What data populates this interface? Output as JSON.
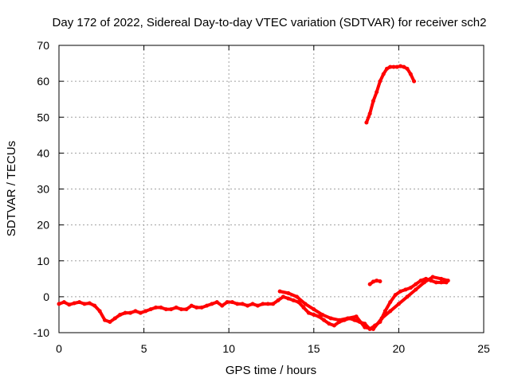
{
  "chart_data": {
    "type": "scatter",
    "title": "Day 172 of 2022, Sidereal Day-to-day VTEC variation (SDTVAR) for receiver sch2",
    "xlabel": "GPS time / hours",
    "ylabel": "SDTVAR / TECUs",
    "xlim": [
      0,
      25
    ],
    "ylim": [
      -10,
      70
    ],
    "xticks": [
      0,
      5,
      10,
      15,
      20,
      25
    ],
    "yticks": [
      -10,
      0,
      10,
      20,
      30,
      40,
      50,
      60,
      70
    ],
    "grid": true,
    "series": [
      {
        "name": "SDTVAR main track",
        "color": "#ff0000",
        "x": [
          0.0,
          0.3,
          0.6,
          0.9,
          1.2,
          1.5,
          1.8,
          2.1,
          2.4,
          2.7,
          3.0,
          3.3,
          3.6,
          3.9,
          4.2,
          4.5,
          4.8,
          5.1,
          5.4,
          5.7,
          6.0,
          6.3,
          6.6,
          6.9,
          7.2,
          7.5,
          7.8,
          8.1,
          8.4,
          8.7,
          9.0,
          9.3,
          9.6,
          9.9,
          10.2,
          10.5,
          10.8,
          11.1,
          11.4,
          11.7,
          12.0,
          12.3,
          12.6,
          12.9,
          13.2,
          13.5,
          13.8,
          14.1,
          14.4,
          14.7,
          15.0,
          15.3,
          15.6,
          15.9,
          16.2,
          16.5,
          16.8,
          17.1,
          17.4,
          17.7,
          18.0,
          18.3,
          18.6,
          18.9,
          19.2,
          19.5,
          19.8,
          20.1,
          20.4,
          20.7,
          21.0,
          21.3,
          21.6,
          21.9,
          22.2,
          22.5,
          22.8
        ],
        "y": [
          -2.0,
          -1.5,
          -2.2,
          -1.8,
          -1.5,
          -2.0,
          -1.8,
          -2.5,
          -4.0,
          -6.5,
          -7.0,
          -6.0,
          -5.0,
          -4.5,
          -4.5,
          -4.0,
          -4.5,
          -4.0,
          -3.5,
          -3.0,
          -3.0,
          -3.5,
          -3.5,
          -3.0,
          -3.5,
          -3.5,
          -2.5,
          -3.0,
          -3.0,
          -2.5,
          -2.0,
          -1.5,
          -2.5,
          -1.5,
          -1.5,
          -2.0,
          -2.0,
          -2.5,
          -2.0,
          -2.5,
          -2.0,
          -2.0,
          -2.0,
          -1.0,
          0.0,
          -0.5,
          -1.0,
          -1.5,
          -3.0,
          -4.5,
          -5.0,
          -5.5,
          -6.5,
          -7.5,
          -8.0,
          -7.0,
          -6.5,
          -6.0,
          -6.5,
          -7.0,
          -7.5,
          -9.0,
          -8.0,
          -7.0,
          -4.0,
          -1.5,
          0.5,
          1.5,
          2.0,
          2.5,
          3.5,
          4.5,
          5.0,
          4.5,
          4.0,
          4.0,
          4.0
        ]
      },
      {
        "name": "SDTVAR secondary track",
        "color": "#ff0000",
        "x": [
          13.0,
          13.5,
          14.0,
          14.5,
          15.0,
          15.5,
          16.0,
          16.5,
          17.0,
          17.5,
          18.0,
          18.5,
          19.0,
          19.5,
          20.0,
          20.5,
          21.0,
          21.5,
          22.0,
          22.5,
          22.9
        ],
        "y": [
          1.5,
          1.0,
          0.0,
          -2.0,
          -3.5,
          -5.0,
          -6.0,
          -6.5,
          -6.0,
          -5.5,
          -8.5,
          -9.0,
          -6.0,
          -4.0,
          -2.0,
          0.0,
          2.0,
          4.0,
          5.5,
          5.0,
          4.5
        ]
      },
      {
        "name": "SDTVAR short segment (~18.6 h)",
        "color": "#ff0000",
        "x": [
          18.3,
          18.5,
          18.7,
          18.9
        ],
        "y": [
          3.5,
          4.2,
          4.5,
          4.3
        ]
      },
      {
        "name": "SDTVAR high segment (18.1–20.9 h)",
        "color": "#ff0000",
        "x": [
          18.1,
          18.3,
          18.5,
          18.7,
          18.9,
          19.1,
          19.3,
          19.5,
          19.7,
          19.9,
          20.1,
          20.3,
          20.5,
          20.7,
          20.9
        ],
        "y": [
          48.5,
          51.0,
          54.5,
          57.0,
          60.0,
          62.0,
          63.5,
          64.0,
          64.0,
          64.0,
          64.2,
          64.0,
          63.5,
          62.0,
          60.0
        ]
      }
    ]
  }
}
